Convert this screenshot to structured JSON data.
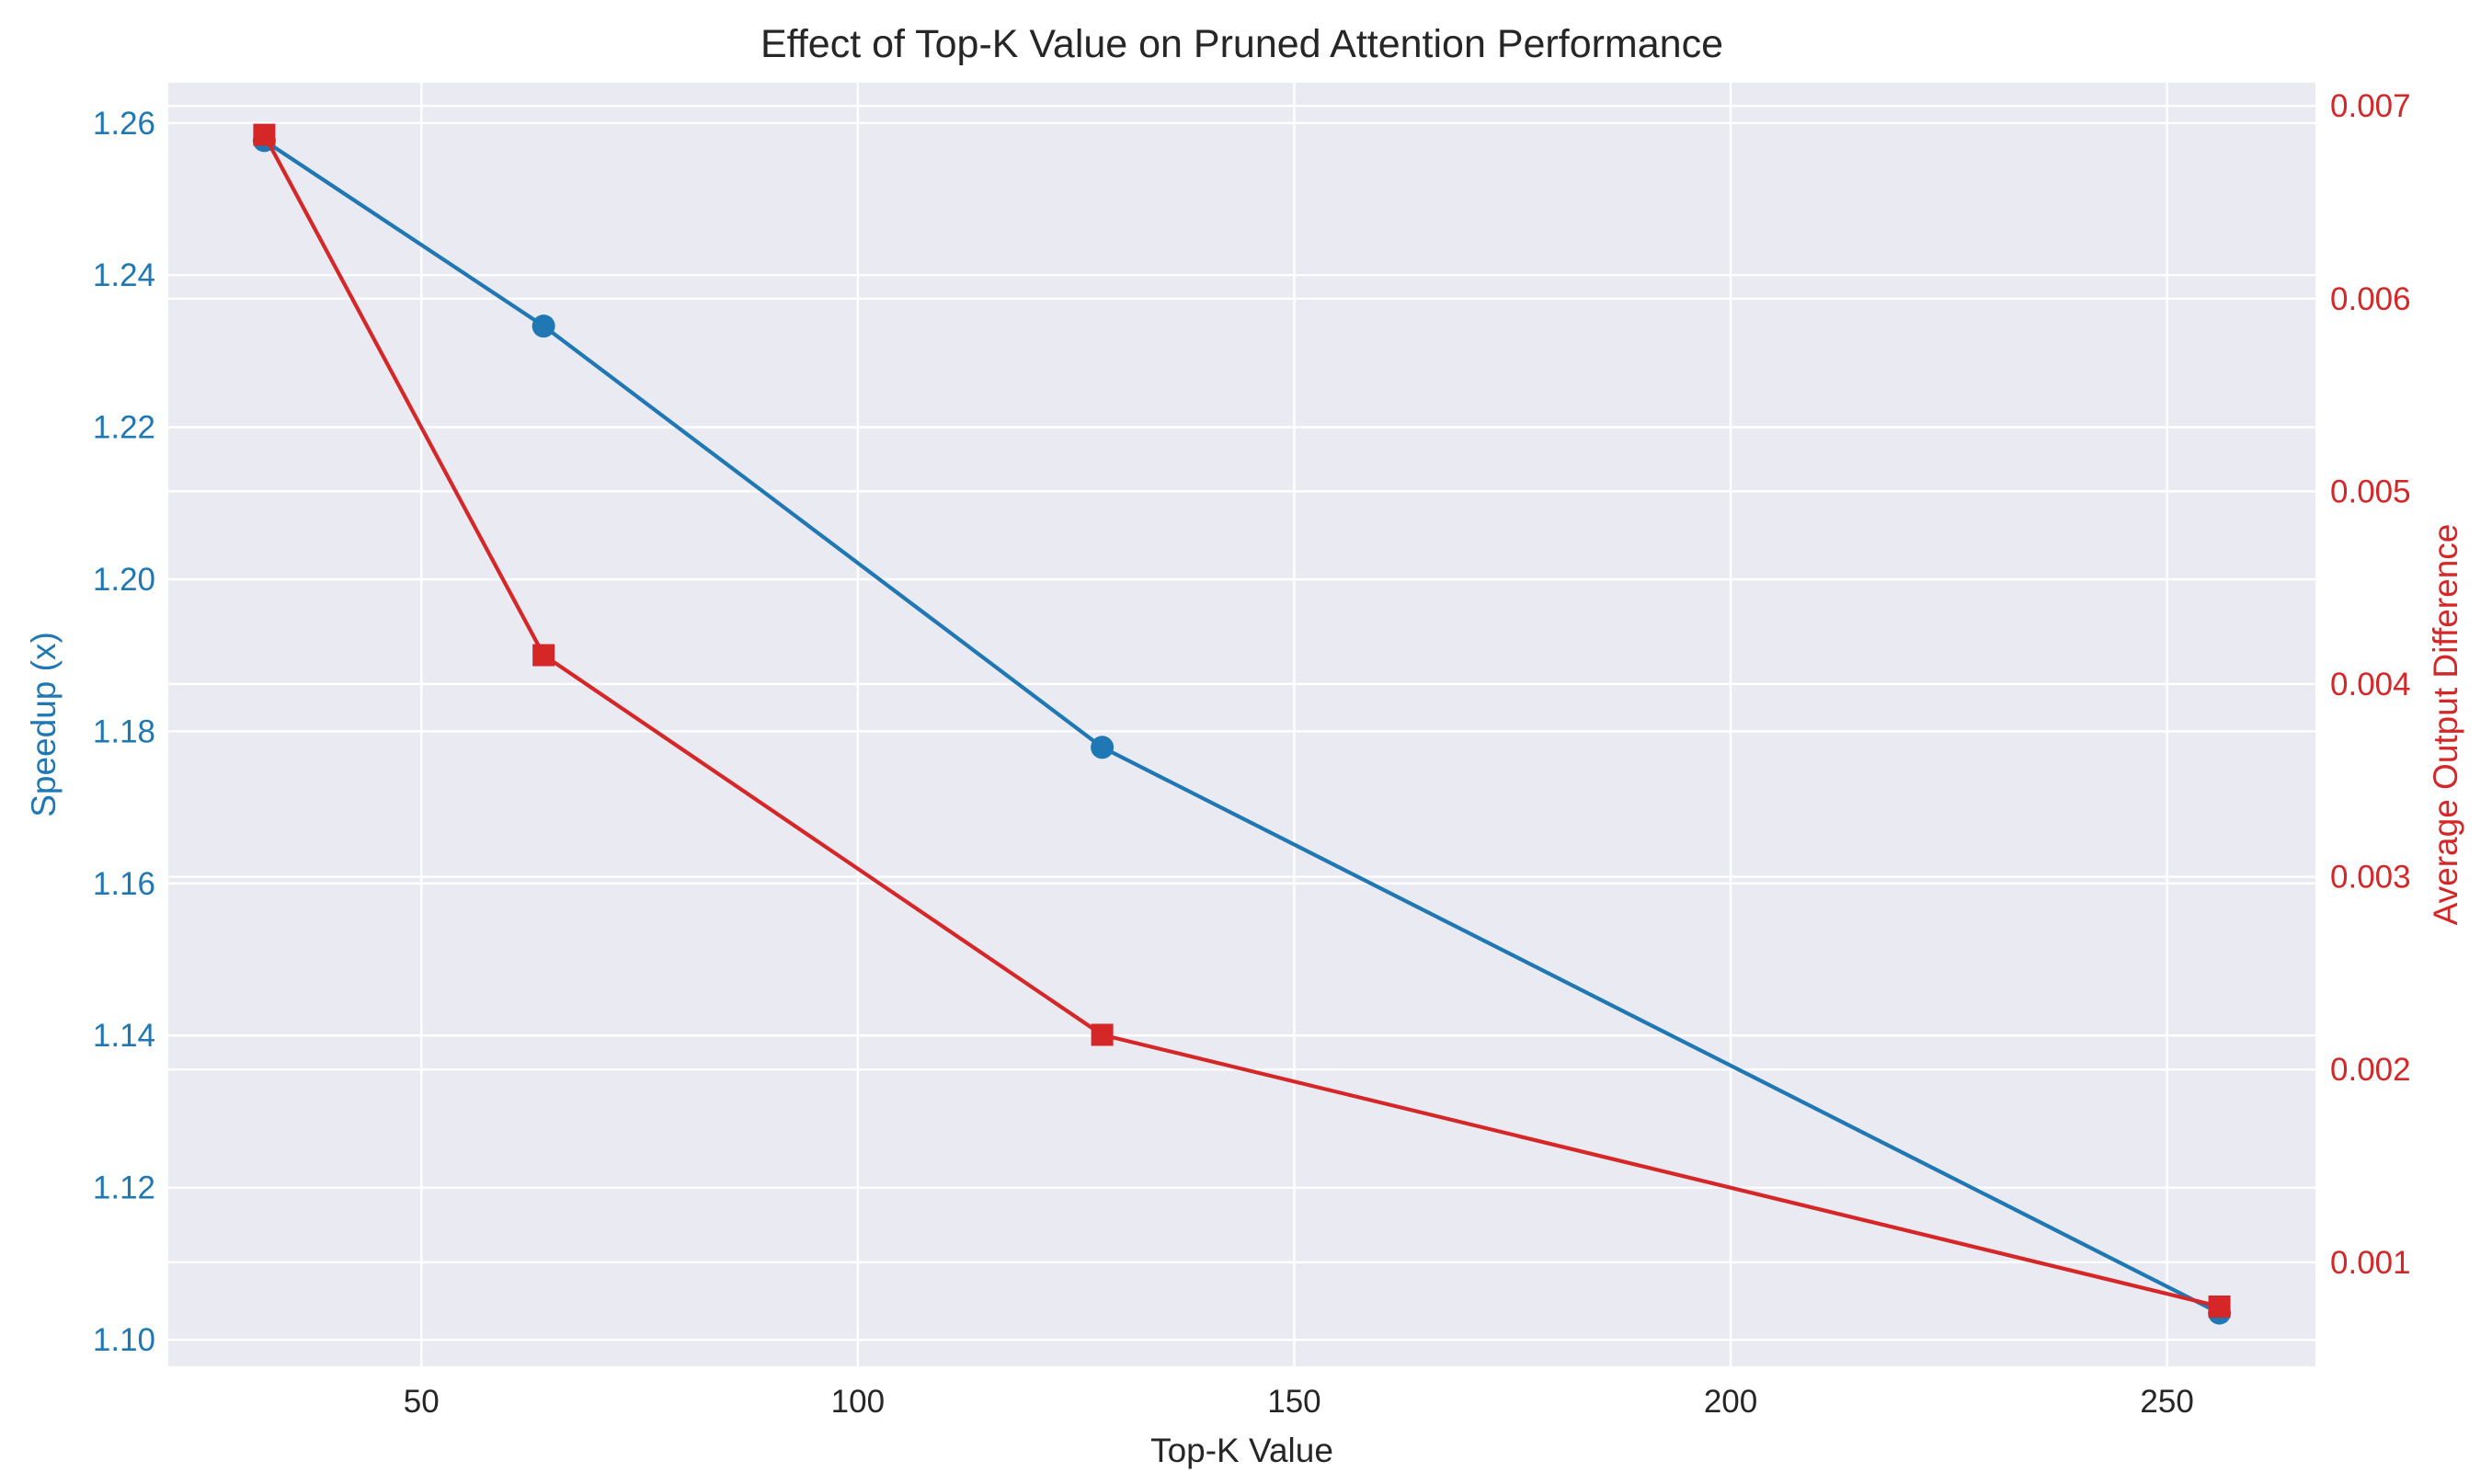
{
  "chart_data": {
    "type": "line",
    "title": "Effect of Top-K Value on Pruned Attention Performance",
    "xlabel": "Top-K Value",
    "xlim": [
      21,
      267
    ],
    "xticks": [
      50,
      100,
      150,
      200,
      250
    ],
    "x_tick_labels": [
      "50",
      "100",
      "150",
      "200",
      "250"
    ],
    "grid": true,
    "legend": "none",
    "y_left": {
      "label": "Speedup (x)",
      "color": "#1f77b4",
      "ylim": [
        1.0965,
        1.2653
      ],
      "ticks": [
        1.1,
        1.12,
        1.14,
        1.16,
        1.18,
        1.2,
        1.22,
        1.24,
        1.26
      ],
      "tick_labels": [
        "1.10",
        "1.12",
        "1.14",
        "1.16",
        "1.18",
        "1.20",
        "1.22",
        "1.24",
        "1.26"
      ]
    },
    "y_right": {
      "label": "Average Output Difference",
      "color": "#d62728",
      "ylim": [
        0.00046,
        0.00712
      ],
      "ticks": [
        0.001,
        0.002,
        0.003,
        0.004,
        0.005,
        0.006,
        0.007
      ],
      "tick_labels": [
        "0.001",
        "0.002",
        "0.003",
        "0.004",
        "0.005",
        "0.006",
        "0.007"
      ]
    },
    "x": [
      32,
      64,
      128,
      256
    ],
    "series": [
      {
        "axis": "left",
        "color": "#1f77b4",
        "marker": "circle",
        "values": [
          1.2577,
          1.2333,
          1.1779,
          1.1035
        ]
      },
      {
        "axis": "right",
        "color": "#d62728",
        "marker": "square",
        "values": [
          0.00685,
          0.00415,
          0.00218,
          0.00077
        ]
      }
    ]
  },
  "colors": {
    "plot_background": "#eaeaf2",
    "grid": "#ffffff",
    "text": "#262626"
  }
}
